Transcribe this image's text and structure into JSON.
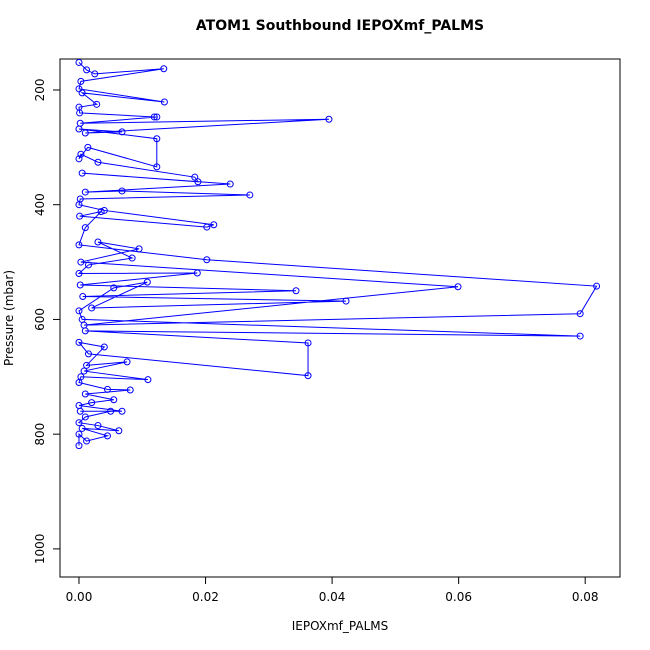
{
  "chart_data": {
    "type": "line",
    "title": "ATOM1 Southbound IEPOXmf_PALMS",
    "x_label": "IEPOXmf_PALMS",
    "y_label": "Pressure (mbar)",
    "color": "#0000ff",
    "xlim": [
      -0.003,
      0.0855
    ],
    "ylim": [
      1049,
      146
    ],
    "xticks": [
      {
        "value": 0,
        "label": "0.00"
      },
      {
        "value": 0.02,
        "label": "0.02"
      },
      {
        "value": 0.04,
        "label": "0.04"
      },
      {
        "value": 0.06,
        "label": "0.06"
      },
      {
        "value": 0.08,
        "label": "0.08"
      }
    ],
    "yticks": [
      200,
      400,
      600,
      800,
      1000
    ],
    "x": [
      0.0,
      0.0012,
      0.0025,
      0.0134,
      0.0003,
      0.0,
      0.0135,
      0.0005,
      0.0028,
      0.0,
      0.0001,
      0.0119,
      0.0123,
      0.0002,
      0.0395,
      0.001,
      0.0068,
      0.0,
      0.0123,
      0.0123,
      0.0014,
      0.0,
      0.0003,
      0.003,
      0.0183,
      0.0188,
      0.0005,
      0.0239,
      0.001,
      0.0068,
      0.027,
      0.0002,
      0.0,
      0.004,
      0.0213,
      0.0202,
      0.0001,
      0.0035,
      0.001,
      0.0,
      0.0202,
      0.0818,
      0.0792,
      0.0008,
      0.0599,
      0.0003,
      0.0095,
      0.003,
      0.0084,
      0.0015,
      0.0,
      0.0187,
      0.0002,
      0.0343,
      0.0006,
      0.0422,
      0.002,
      0.0108,
      0.0055,
      0.0,
      0.0005,
      0.0792,
      0.001,
      0.0362,
      0.0362,
      0.0015,
      0.0,
      0.004,
      0.0012,
      0.0076,
      0.0008,
      0.0109,
      0.0003,
      0.0,
      0.0045,
      0.0081,
      0.001,
      0.0055,
      0.002,
      0.0,
      0.0068,
      0.0002,
      0.005,
      0.001,
      0.0,
      0.003,
      0.0063,
      0.0005,
      0.0045,
      0.0012,
      0.0,
      0.0
    ],
    "values": [
      152,
      165,
      172,
      163,
      185,
      198,
      221,
      205,
      225,
      230,
      240,
      247,
      247,
      258,
      251,
      275,
      273,
      268,
      285,
      334,
      300,
      320,
      312,
      326,
      352,
      360,
      345,
      364,
      378,
      376,
      383,
      390,
      400,
      410,
      435,
      439,
      420,
      412,
      440,
      470,
      496,
      542,
      590,
      610,
      543,
      500,
      477,
      465,
      493,
      505,
      520,
      519,
      540,
      550,
      560,
      568,
      580,
      535,
      545,
      585,
      600,
      629,
      620,
      641,
      698,
      660,
      640,
      648,
      680,
      674,
      690,
      705,
      700,
      710,
      722,
      723,
      730,
      740,
      745,
      750,
      760,
      760,
      760,
      770,
      780,
      785,
      794,
      790,
      803,
      812,
      800,
      820
    ]
  }
}
